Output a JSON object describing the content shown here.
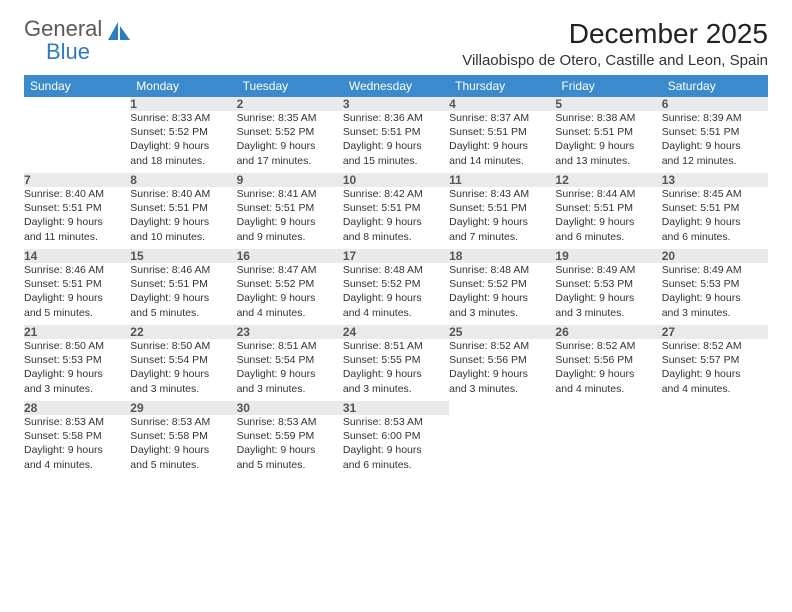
{
  "brand": {
    "word1": "General",
    "word2": "Blue"
  },
  "title": "December 2025",
  "location": "Villaobispo de Otero, Castille and Leon, Spain",
  "colors": {
    "header_bg": "#3b8acb",
    "header_text": "#ffffff",
    "daynum_bg": "#e9eaea",
    "daynum_border": "#bfbfbf",
    "text": "#333333",
    "brand_gray": "#5a5a5a",
    "brand_blue": "#2d7cc0"
  },
  "day_headers": [
    "Sunday",
    "Monday",
    "Tuesday",
    "Wednesday",
    "Thursday",
    "Friday",
    "Saturday"
  ],
  "weeks": [
    [
      null,
      {
        "n": "1",
        "sunrise": "8:33 AM",
        "sunset": "5:52 PM",
        "day_h": "9",
        "day_m": "18"
      },
      {
        "n": "2",
        "sunrise": "8:35 AM",
        "sunset": "5:52 PM",
        "day_h": "9",
        "day_m": "17"
      },
      {
        "n": "3",
        "sunrise": "8:36 AM",
        "sunset": "5:51 PM",
        "day_h": "9",
        "day_m": "15"
      },
      {
        "n": "4",
        "sunrise": "8:37 AM",
        "sunset": "5:51 PM",
        "day_h": "9",
        "day_m": "14"
      },
      {
        "n": "5",
        "sunrise": "8:38 AM",
        "sunset": "5:51 PM",
        "day_h": "9",
        "day_m": "13"
      },
      {
        "n": "6",
        "sunrise": "8:39 AM",
        "sunset": "5:51 PM",
        "day_h": "9",
        "day_m": "12"
      }
    ],
    [
      {
        "n": "7",
        "sunrise": "8:40 AM",
        "sunset": "5:51 PM",
        "day_h": "9",
        "day_m": "11"
      },
      {
        "n": "8",
        "sunrise": "8:40 AM",
        "sunset": "5:51 PM",
        "day_h": "9",
        "day_m": "10"
      },
      {
        "n": "9",
        "sunrise": "8:41 AM",
        "sunset": "5:51 PM",
        "day_h": "9",
        "day_m": "9"
      },
      {
        "n": "10",
        "sunrise": "8:42 AM",
        "sunset": "5:51 PM",
        "day_h": "9",
        "day_m": "8"
      },
      {
        "n": "11",
        "sunrise": "8:43 AM",
        "sunset": "5:51 PM",
        "day_h": "9",
        "day_m": "7"
      },
      {
        "n": "12",
        "sunrise": "8:44 AM",
        "sunset": "5:51 PM",
        "day_h": "9",
        "day_m": "6"
      },
      {
        "n": "13",
        "sunrise": "8:45 AM",
        "sunset": "5:51 PM",
        "day_h": "9",
        "day_m": "6"
      }
    ],
    [
      {
        "n": "14",
        "sunrise": "8:46 AM",
        "sunset": "5:51 PM",
        "day_h": "9",
        "day_m": "5"
      },
      {
        "n": "15",
        "sunrise": "8:46 AM",
        "sunset": "5:51 PM",
        "day_h": "9",
        "day_m": "5"
      },
      {
        "n": "16",
        "sunrise": "8:47 AM",
        "sunset": "5:52 PM",
        "day_h": "9",
        "day_m": "4"
      },
      {
        "n": "17",
        "sunrise": "8:48 AM",
        "sunset": "5:52 PM",
        "day_h": "9",
        "day_m": "4"
      },
      {
        "n": "18",
        "sunrise": "8:48 AM",
        "sunset": "5:52 PM",
        "day_h": "9",
        "day_m": "3"
      },
      {
        "n": "19",
        "sunrise": "8:49 AM",
        "sunset": "5:53 PM",
        "day_h": "9",
        "day_m": "3"
      },
      {
        "n": "20",
        "sunrise": "8:49 AM",
        "sunset": "5:53 PM",
        "day_h": "9",
        "day_m": "3"
      }
    ],
    [
      {
        "n": "21",
        "sunrise": "8:50 AM",
        "sunset": "5:53 PM",
        "day_h": "9",
        "day_m": "3"
      },
      {
        "n": "22",
        "sunrise": "8:50 AM",
        "sunset": "5:54 PM",
        "day_h": "9",
        "day_m": "3"
      },
      {
        "n": "23",
        "sunrise": "8:51 AM",
        "sunset": "5:54 PM",
        "day_h": "9",
        "day_m": "3"
      },
      {
        "n": "24",
        "sunrise": "8:51 AM",
        "sunset": "5:55 PM",
        "day_h": "9",
        "day_m": "3"
      },
      {
        "n": "25",
        "sunrise": "8:52 AM",
        "sunset": "5:56 PM",
        "day_h": "9",
        "day_m": "3"
      },
      {
        "n": "26",
        "sunrise": "8:52 AM",
        "sunset": "5:56 PM",
        "day_h": "9",
        "day_m": "4"
      },
      {
        "n": "27",
        "sunrise": "8:52 AM",
        "sunset": "5:57 PM",
        "day_h": "9",
        "day_m": "4"
      }
    ],
    [
      {
        "n": "28",
        "sunrise": "8:53 AM",
        "sunset": "5:58 PM",
        "day_h": "9",
        "day_m": "4"
      },
      {
        "n": "29",
        "sunrise": "8:53 AM",
        "sunset": "5:58 PM",
        "day_h": "9",
        "day_m": "5"
      },
      {
        "n": "30",
        "sunrise": "8:53 AM",
        "sunset": "5:59 PM",
        "day_h": "9",
        "day_m": "5"
      },
      {
        "n": "31",
        "sunrise": "8:53 AM",
        "sunset": "6:00 PM",
        "day_h": "9",
        "day_m": "6"
      },
      null,
      null,
      null
    ]
  ]
}
